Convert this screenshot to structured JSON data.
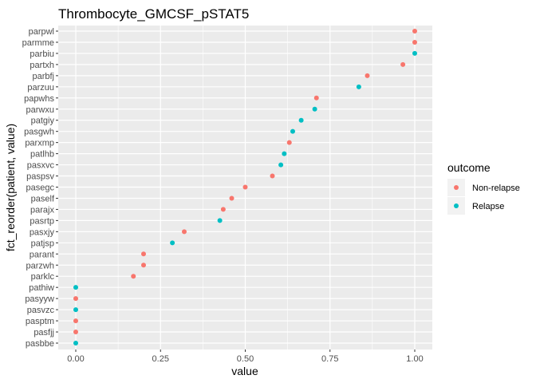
{
  "chart_data": {
    "type": "scatter",
    "title": "Thrombocyte_GMCSF_pSTAT5",
    "xlabel": "value",
    "ylabel": "fct_reorder(patient, value)",
    "xlim": [
      -0.04,
      1.05
    ],
    "x_ticks": [
      "0.00",
      "0.25",
      "0.50",
      "0.75",
      "1.00"
    ],
    "x_tick_values": [
      0,
      0.25,
      0.5,
      0.75,
      1.0
    ],
    "grid": true,
    "legend": {
      "title": "outcome",
      "position": "right",
      "entries": [
        {
          "label": "Non-relapse",
          "color": "#F8766D"
        },
        {
          "label": "Relapse",
          "color": "#00BFC4"
        }
      ]
    },
    "categories": [
      "parpwl",
      "parmme",
      "parbiu",
      "partxh",
      "parbfj",
      "parzuu",
      "papwhs",
      "parwxu",
      "patgiy",
      "pasgwh",
      "parxmp",
      "patlhb",
      "pasxvc",
      "paspsv",
      "pasegc",
      "paself",
      "parajx",
      "pasrtp",
      "pasxjy",
      "patjsp",
      "parant",
      "parzwh",
      "parklc",
      "pathiw",
      "pasyyw",
      "pasvzc",
      "pasptm",
      "pasfjj",
      "pasbbe"
    ],
    "points": [
      {
        "patient": "parpwl",
        "value": 1.0,
        "outcome": "Non-relapse"
      },
      {
        "patient": "parmme",
        "value": 1.0,
        "outcome": "Non-relapse"
      },
      {
        "patient": "parbiu",
        "value": 1.0,
        "outcome": "Relapse"
      },
      {
        "patient": "partxh",
        "value": 0.965,
        "outcome": "Non-relapse"
      },
      {
        "patient": "parbfj",
        "value": 0.86,
        "outcome": "Non-relapse"
      },
      {
        "patient": "parzuu",
        "value": 0.835,
        "outcome": "Relapse"
      },
      {
        "patient": "papwhs",
        "value": 0.71,
        "outcome": "Non-relapse"
      },
      {
        "patient": "parwxu",
        "value": 0.705,
        "outcome": "Relapse"
      },
      {
        "patient": "patgiy",
        "value": 0.665,
        "outcome": "Relapse"
      },
      {
        "patient": "pasgwh",
        "value": 0.64,
        "outcome": "Relapse"
      },
      {
        "patient": "parxmp",
        "value": 0.63,
        "outcome": "Non-relapse"
      },
      {
        "patient": "patlhb",
        "value": 0.615,
        "outcome": "Relapse"
      },
      {
        "patient": "pasxvc",
        "value": 0.605,
        "outcome": "Relapse"
      },
      {
        "patient": "paspsv",
        "value": 0.58,
        "outcome": "Non-relapse"
      },
      {
        "patient": "pasegc",
        "value": 0.5,
        "outcome": "Non-relapse"
      },
      {
        "patient": "paself",
        "value": 0.46,
        "outcome": "Non-relapse"
      },
      {
        "patient": "parajx",
        "value": 0.435,
        "outcome": "Non-relapse"
      },
      {
        "patient": "pasrtp",
        "value": 0.425,
        "outcome": "Relapse"
      },
      {
        "patient": "pasxjy",
        "value": 0.32,
        "outcome": "Non-relapse"
      },
      {
        "patient": "patjsp",
        "value": 0.285,
        "outcome": "Relapse"
      },
      {
        "patient": "parant",
        "value": 0.2,
        "outcome": "Non-relapse"
      },
      {
        "patient": "parzwh",
        "value": 0.2,
        "outcome": "Non-relapse"
      },
      {
        "patient": "parklc",
        "value": 0.17,
        "outcome": "Non-relapse"
      },
      {
        "patient": "pathiw",
        "value": 0.0,
        "outcome": "Relapse"
      },
      {
        "patient": "pasyyw",
        "value": 0.0,
        "outcome": "Non-relapse"
      },
      {
        "patient": "pasvzc",
        "value": 0.0,
        "outcome": "Relapse"
      },
      {
        "patient": "pasptm",
        "value": 0.0,
        "outcome": "Non-relapse"
      },
      {
        "patient": "pasfjj",
        "value": 0.0,
        "outcome": "Non-relapse"
      },
      {
        "patient": "pasbbe",
        "value": 0.0,
        "outcome": "Relapse"
      }
    ],
    "colors": {
      "Non-relapse": "#F8766D",
      "Relapse": "#00BFC4",
      "panel_bg": "#EBEBEB",
      "grid": "#FFFFFF"
    }
  }
}
